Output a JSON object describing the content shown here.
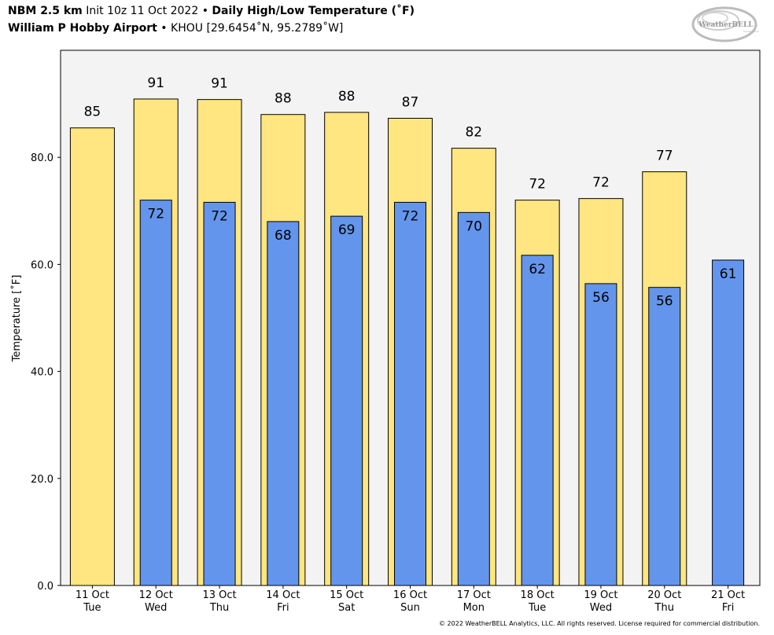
{
  "header": {
    "model": "NBM 2.5 km",
    "init": "Init 10z 11 Oct 2022",
    "separator": "•",
    "product": "Daily High/Low Temperature (˚F)",
    "station_name": "William P Hobby Airport",
    "station_code": "KHOU [29.6454˚N, 95.2789˚W]"
  },
  "logo": {
    "text": "WeatherBELL",
    "sub": "Analytics LLC"
  },
  "copyright": "© 2022 WeatherBELL Analytics, LLC. All rights reserved. License required for commercial distribution.",
  "colors": {
    "high": "#ffe680",
    "low": "#6495ed",
    "plot_bg": "#f3f3f3"
  },
  "chart_data": {
    "type": "bar",
    "ylabel": "Temperature [˚F]",
    "ylim": [
      0,
      100
    ],
    "yticks": [
      "0.0",
      "20.0",
      "40.0",
      "60.0",
      "80.0"
    ],
    "ytick_values": [
      0,
      20,
      40,
      60,
      80
    ],
    "categories": [
      {
        "date": "11 Oct",
        "day": "Tue"
      },
      {
        "date": "12 Oct",
        "day": "Wed"
      },
      {
        "date": "13 Oct",
        "day": "Thu"
      },
      {
        "date": "14 Oct",
        "day": "Fri"
      },
      {
        "date": "15 Oct",
        "day": "Sat"
      },
      {
        "date": "16 Oct",
        "day": "Sun"
      },
      {
        "date": "17 Oct",
        "day": "Mon"
      },
      {
        "date": "18 Oct",
        "day": "Tue"
      },
      {
        "date": "19 Oct",
        "day": "Wed"
      },
      {
        "date": "20 Oct",
        "day": "Thu"
      },
      {
        "date": "21 Oct",
        "day": "Fri"
      }
    ],
    "series": [
      {
        "values": [
          85.5,
          90.9,
          90.8,
          88.0,
          88.4,
          87.3,
          81.7,
          72.0,
          72.3,
          77.3,
          null
        ],
        "labels": [
          "85",
          "91",
          "91",
          "88",
          "88",
          "87",
          "82",
          "72",
          "72",
          "77",
          null
        ]
      },
      {
        "values": [
          null,
          72.0,
          71.6,
          68.0,
          69.0,
          71.6,
          69.7,
          61.7,
          56.4,
          55.7,
          60.8
        ],
        "labels": [
          null,
          "72",
          "72",
          "68",
          "69",
          "72",
          "70",
          "62",
          "56",
          "56",
          "61"
        ]
      }
    ],
    "grid": false,
    "legend": "none"
  }
}
